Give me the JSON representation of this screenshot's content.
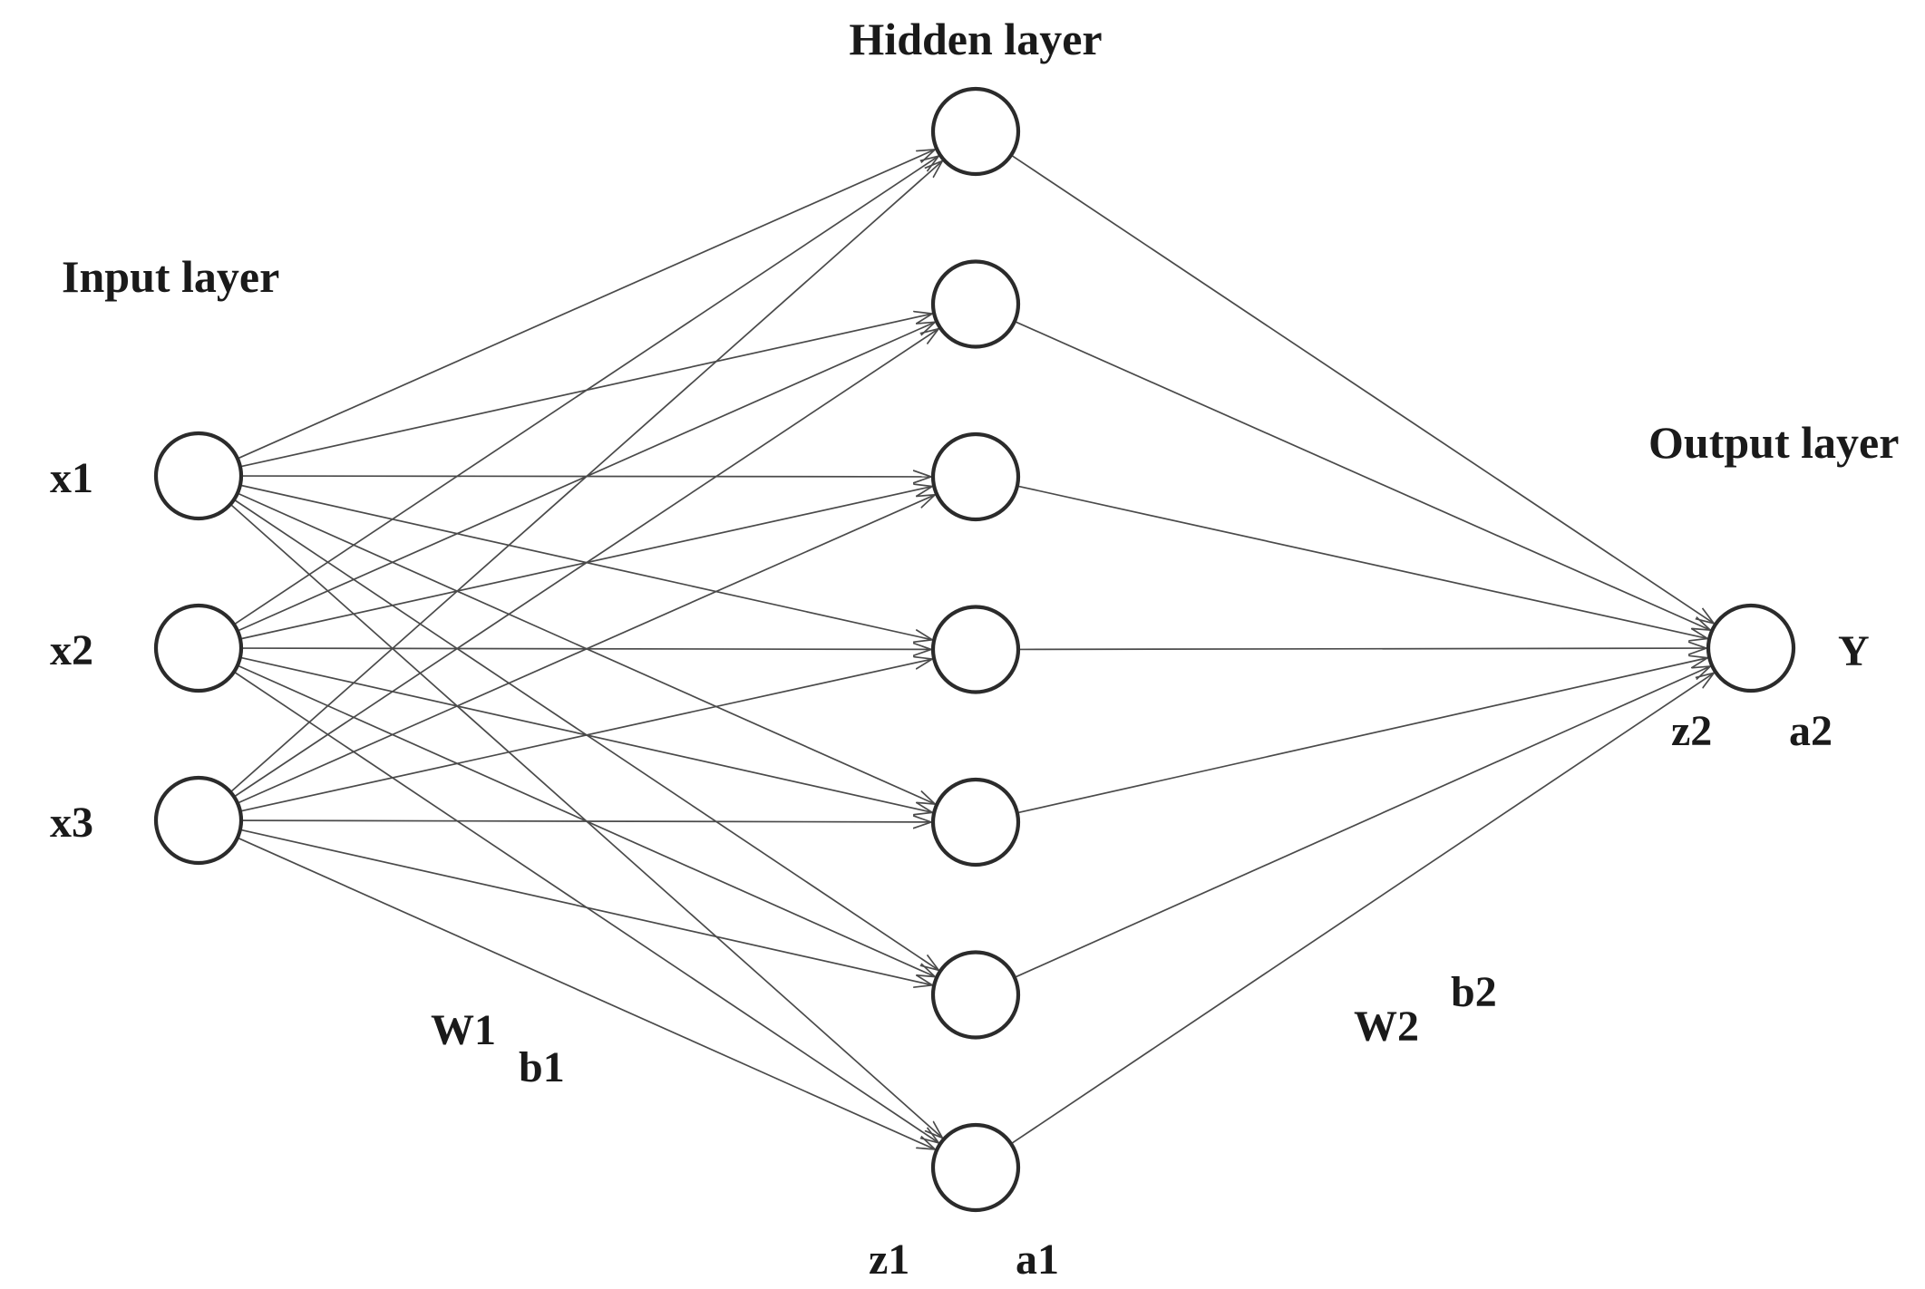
{
  "layers": {
    "input": {
      "title": "Input layer",
      "nodes": [
        "x1",
        "x2",
        "x3"
      ]
    },
    "hidden": {
      "title": "Hidden layer",
      "node_count": 7,
      "pre_activation": "z1",
      "activation": "a1"
    },
    "output": {
      "title": "Output layer",
      "node_label": "Y",
      "pre_activation": "z2",
      "activation": "a2"
    }
  },
  "parameters": {
    "w1": "W1",
    "b1": "b1",
    "w2": "W2",
    "b2": "b2"
  },
  "colors": {
    "edge": "#4a4a4a",
    "node_stroke": "#2b2b2b",
    "text": "#1a1a1a",
    "background": "#ffffff"
  }
}
